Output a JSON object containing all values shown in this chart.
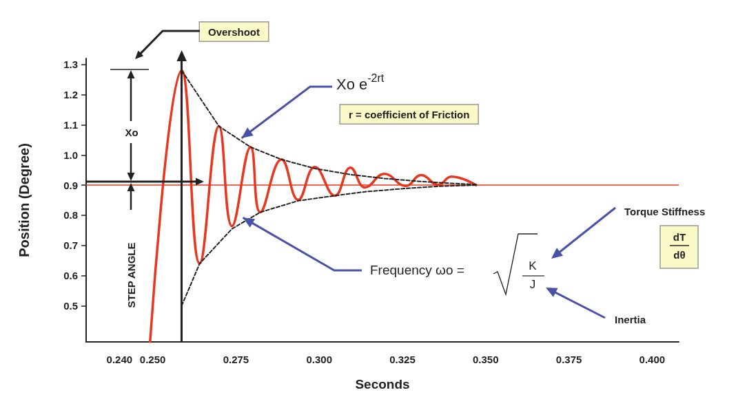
{
  "chart_data": {
    "type": "line",
    "xlabel": "Seconds",
    "ylabel": "Position (Degree)",
    "xlim": [
      0.23,
      0.408
    ],
    "ylim": [
      0.38,
      1.32
    ],
    "xticks": [
      {
        "value": 0.24,
        "label": "0.240"
      },
      {
        "value": 0.25,
        "label": "0.250"
      },
      {
        "value": 0.275,
        "label": "0.275"
      },
      {
        "value": 0.3,
        "label": "0.300"
      },
      {
        "value": 0.325,
        "label": "0.325"
      },
      {
        "value": 0.35,
        "label": "0.350"
      },
      {
        "value": 0.375,
        "label": "0.375"
      },
      {
        "value": 0.4,
        "label": "0.400"
      }
    ],
    "yticks": [
      0.5,
      0.6,
      0.7,
      0.8,
      0.9,
      {
        "value": 1.0,
        "label": "1.0"
      },
      1.1,
      1.2,
      1.3
    ],
    "grid": false,
    "marker": "none",
    "series": [
      {
        "color": "#e8361f",
        "line_style": "solid",
        "x": [
          0.2492,
          0.2587,
          0.2641,
          0.2699,
          0.2738,
          0.2794,
          0.2823,
          0.2887,
          0.2937,
          0.2987,
          0.3047,
          0.3094,
          0.3138,
          0.3196,
          0.326,
          0.3306,
          0.3358,
          0.3397,
          0.3471
        ],
        "values": [
          0.38,
          1.28,
          0.64,
          1.095,
          0.764,
          1.026,
          0.81,
          0.985,
          0.851,
          0.96,
          0.865,
          0.958,
          0.892,
          0.937,
          0.897,
          0.933,
          0.901,
          0.928,
          0.9
        ]
      },
      {
        "color": "#222222",
        "line_style": "dashed",
        "x": [
          0.2587,
          0.2699,
          0.2794,
          0.2887,
          0.2987,
          0.3094,
          0.3196,
          0.3306,
          0.3397,
          0.3471
        ],
        "values": [
          1.28,
          1.095,
          1.026,
          0.985,
          0.955,
          0.935,
          0.922,
          0.912,
          0.906,
          0.902
        ]
      },
      {
        "color": "#222222",
        "line_style": "dashed",
        "x": [
          0.2587,
          0.2641,
          0.2738,
          0.2823,
          0.2937,
          0.3047,
          0.3138,
          0.326,
          0.3358,
          0.3471
        ],
        "values": [
          0.5,
          0.64,
          0.755,
          0.81,
          0.848,
          0.865,
          0.878,
          0.889,
          0.896,
          0.9
        ]
      }
    ],
    "ref_lines": [
      {
        "axis": "y",
        "value": 0.9,
        "color": "#e8361f"
      },
      {
        "axis": "x",
        "value": 0.2587,
        "color": "#222222"
      }
    ],
    "annotations": [
      "Overshoot",
      {
        "text": "Xo e$^{-2rt}$",
        "x": 0.2767,
        "y": 1.056
      },
      "r = coefficient of Friction",
      "Xo",
      "STEP ANGLE",
      {
        "text": "Frequency ωo =",
        "x": 0.2771,
        "y": 0.792
      },
      "K",
      "J",
      "Torque Stiffness",
      "dT",
      "dθ",
      "Inertia"
    ]
  }
}
